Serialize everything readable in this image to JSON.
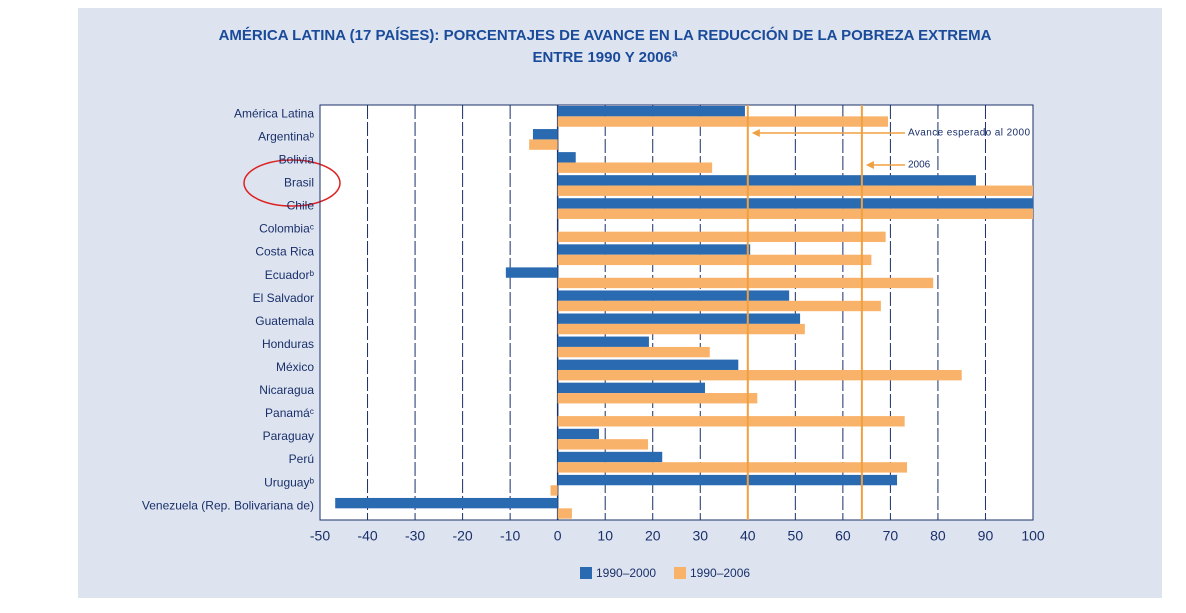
{
  "chart_data": {
    "type": "hbar",
    "title": [
      "AMÉRICA LATINA (17 PAÍSES): PORCENTAJES DE AVANCE EN LA REDUCCIÓN DE LA POBREZA EXTREMA",
      "ENTRE 1990 Y 2006ª"
    ],
    "categories": [
      "América Latina",
      "Argentinaᵇ",
      "Bolivia",
      "Brasil",
      "Chile",
      "Colombiaᶜ",
      "Costa Rica",
      "Ecuadorᵇ",
      "El Salvador",
      "Guatemala",
      "Honduras",
      "México",
      "Nicaragua",
      "Panamáᶜ",
      "Paraguay",
      "Perú",
      "Uruguayᵇ",
      "Venezuela (Rep. Bolivariana de)"
    ],
    "series": [
      {
        "name": "1990–2000",
        "color": "#2a6ab0",
        "values": [
          39.4,
          -5.2,
          3.8,
          88,
          100,
          null,
          40.5,
          -10.9,
          48.7,
          51,
          19.2,
          38,
          31,
          null,
          8.7,
          22,
          71.4,
          -46.8
        ]
      },
      {
        "name": "1990–2006",
        "color": "#f9b26a",
        "values": [
          69.5,
          -6,
          32.5,
          100,
          100,
          69,
          66,
          79,
          68,
          52,
          32,
          85,
          42,
          73,
          19,
          73.5,
          -1.5,
          3
        ]
      }
    ],
    "reference_lines": [
      {
        "value": 40,
        "label": "Avance esperado al 2000"
      },
      {
        "value": 64,
        "label": "2006"
      }
    ],
    "xlim": [
      -50,
      100
    ],
    "xticks": [
      -50,
      -40,
      -30,
      -20,
      -10,
      0,
      10,
      20,
      30,
      40,
      50,
      60,
      70,
      80,
      90,
      100
    ],
    "grid": true
  }
}
